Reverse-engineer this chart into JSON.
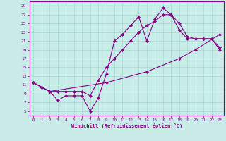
{
  "xlabel": "Windchill (Refroidissement éolien,°C)",
  "bg_color": "#c8ede8",
  "line_color": "#880088",
  "grid_color": "#a8d8d0",
  "ylim": [
    4,
    30
  ],
  "xlim": [
    -0.5,
    23.5
  ],
  "yticks": [
    5,
    7,
    9,
    11,
    13,
    15,
    17,
    19,
    21,
    23,
    25,
    27,
    29
  ],
  "xticks": [
    0,
    1,
    2,
    3,
    4,
    5,
    6,
    7,
    8,
    9,
    10,
    11,
    12,
    13,
    14,
    15,
    16,
    17,
    18,
    19,
    20,
    21,
    22,
    23
  ],
  "line1_x": [
    0,
    1,
    2,
    3,
    4,
    5,
    6,
    7,
    8,
    9,
    10,
    11,
    12,
    13,
    14,
    15,
    16,
    17,
    18,
    19,
    20,
    21,
    22,
    23
  ],
  "line1_y": [
    11.5,
    10.5,
    9.5,
    7.5,
    8.5,
    8.5,
    8.5,
    5.0,
    8.0,
    13.5,
    21.0,
    22.5,
    24.5,
    26.5,
    21.0,
    26.0,
    28.5,
    27.0,
    25.0,
    22.0,
    21.5,
    21.5,
    21.5,
    19.0
  ],
  "line2_x": [
    0,
    1,
    2,
    3,
    4,
    5,
    6,
    7,
    8,
    9,
    10,
    11,
    12,
    13,
    14,
    15,
    16,
    17,
    18,
    19,
    20,
    21,
    22,
    23
  ],
  "line2_y": [
    11.5,
    10.5,
    9.5,
    9.5,
    9.5,
    9.5,
    9.5,
    8.5,
    12.0,
    15.0,
    17.0,
    19.0,
    21.0,
    23.0,
    24.5,
    25.5,
    27.0,
    27.0,
    23.5,
    21.5,
    21.5,
    21.5,
    21.5,
    19.5
  ],
  "line3_x": [
    0,
    1,
    2,
    9,
    14,
    18,
    20,
    23
  ],
  "line3_y": [
    11.5,
    10.5,
    9.5,
    11.5,
    14.0,
    17.0,
    19.0,
    22.5
  ]
}
